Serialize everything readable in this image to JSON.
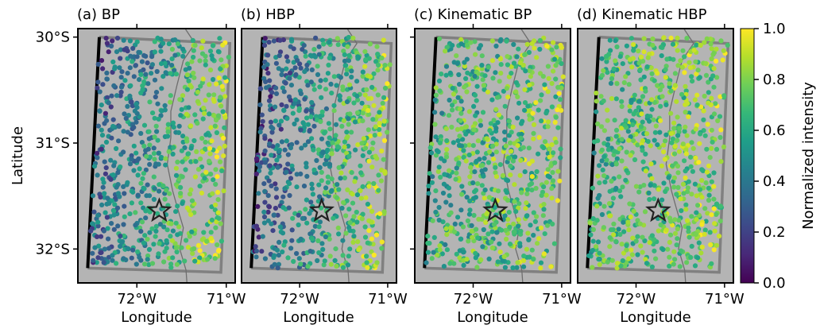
{
  "chart_data": [
    {
      "type": "scatter",
      "title": "(a) BP",
      "xlabel": "Longitude",
      "ylabel": "Latitude",
      "xlim": [
        -72.66,
        -70.9
      ],
      "ylim": [
        -32.32,
        -29.92
      ],
      "xticks": [
        -72,
        -71
      ],
      "xtick_labels": [
        "72°W",
        "71°W"
      ],
      "yticks": [
        -30,
        -31,
        -32
      ],
      "ytick_labels": [
        "30°S",
        "31°S",
        "32°S"
      ],
      "epicenter": [
        -71.75,
        -31.64
      ],
      "scheme": "bp"
    },
    {
      "type": "scatter",
      "title": "(b) HBP",
      "xlabel": "Longitude",
      "ylabel": "",
      "xlim": [
        -72.66,
        -70.9
      ],
      "ylim": [
        -32.32,
        -29.92
      ],
      "xticks": [
        -72,
        -71
      ],
      "xtick_labels": [
        "72°W",
        "71°W"
      ],
      "epicenter": [
        -71.75,
        -31.64
      ],
      "scheme": "hbp"
    },
    {
      "type": "scatter",
      "title": "(c) Kinematic BP",
      "xlabel": "Longitude",
      "ylabel": "",
      "xlim": [
        -72.66,
        -70.9
      ],
      "ylim": [
        -32.32,
        -29.92
      ],
      "xticks": [
        -72,
        -71
      ],
      "xtick_labels": [
        "72°W",
        "71°W"
      ],
      "epicenter": [
        -71.75,
        -31.64
      ],
      "scheme": "kin"
    },
    {
      "type": "scatter",
      "title": "(d) Kinematic HBP",
      "xlabel": "Longitude",
      "ylabel": "",
      "xlim": [
        -72.66,
        -70.9
      ],
      "ylim": [
        -32.32,
        -29.92
      ],
      "xticks": [
        -72,
        -71
      ],
      "xtick_labels": [
        "72°W",
        "71°W"
      ],
      "epicenter": [
        -71.75,
        -31.64
      ],
      "scheme": "kinh"
    }
  ],
  "colorbar": {
    "label": "Normalized intensity",
    "range": [
      0.0,
      1.0
    ],
    "ticks": [
      0.0,
      0.2,
      0.4,
      0.6,
      0.8,
      1.0
    ],
    "tick_labels": [
      "0.0",
      "0.2",
      "0.4",
      "0.6",
      "0.8",
      "1.0"
    ],
    "colormap": [
      "#440154",
      "#482878",
      "#3e4989",
      "#31688e",
      "#26828e",
      "#1f9e89",
      "#35b779",
      "#6ece58",
      "#b5de2b",
      "#fde725"
    ]
  },
  "colors": {
    "land": "#b4b4b4",
    "outline": "#808080",
    "trench": "#000000",
    "coast": "#6e6e6e"
  }
}
